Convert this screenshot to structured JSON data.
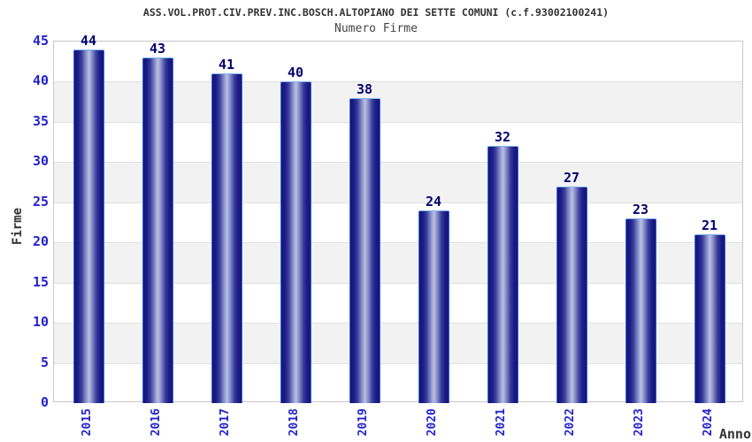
{
  "chart_data": {
    "type": "bar",
    "title": "ASS.VOL.PROT.CIV.PREV.INC.BOSCH.ALTOPIANO DEI SETTE COMUNI (c.f.93002100241)",
    "subtitle": "Numero Firme",
    "xlabel": "Anno",
    "ylabel": "Firme",
    "categories": [
      "2015",
      "2016",
      "2017",
      "2018",
      "2019",
      "2020",
      "2021",
      "2022",
      "2023",
      "2024"
    ],
    "values": [
      44,
      43,
      41,
      40,
      38,
      24,
      32,
      27,
      23,
      21
    ],
    "ylim": [
      0,
      45
    ],
    "ytick_step": 5,
    "yticks": [
      0,
      5,
      10,
      15,
      20,
      25,
      30,
      35,
      40,
      45
    ],
    "grid": true,
    "legend": false,
    "band_pattern": "alternating-5",
    "style": {
      "background": "#ffffff",
      "title_color": "#333333",
      "subtitle_color": "#444444",
      "axis_label_color": "#333333",
      "tick_label_color": "#2222cc",
      "value_label_color": "#000070",
      "band_color": "#f2f2f2",
      "grid_color": "#e0e0e0",
      "plot_border_color": "#c8c8c8",
      "bar_border_color": "#3366dd",
      "bar_top_highlight": "#7fb0f0",
      "bar_gradient": [
        "#15157a",
        "#1c1c85",
        "#3a3f9d",
        "#7d85c3",
        "#bcc2e2",
        "#7d85c3",
        "#3a3f9d",
        "#1c1c85",
        "#15157a"
      ]
    }
  }
}
